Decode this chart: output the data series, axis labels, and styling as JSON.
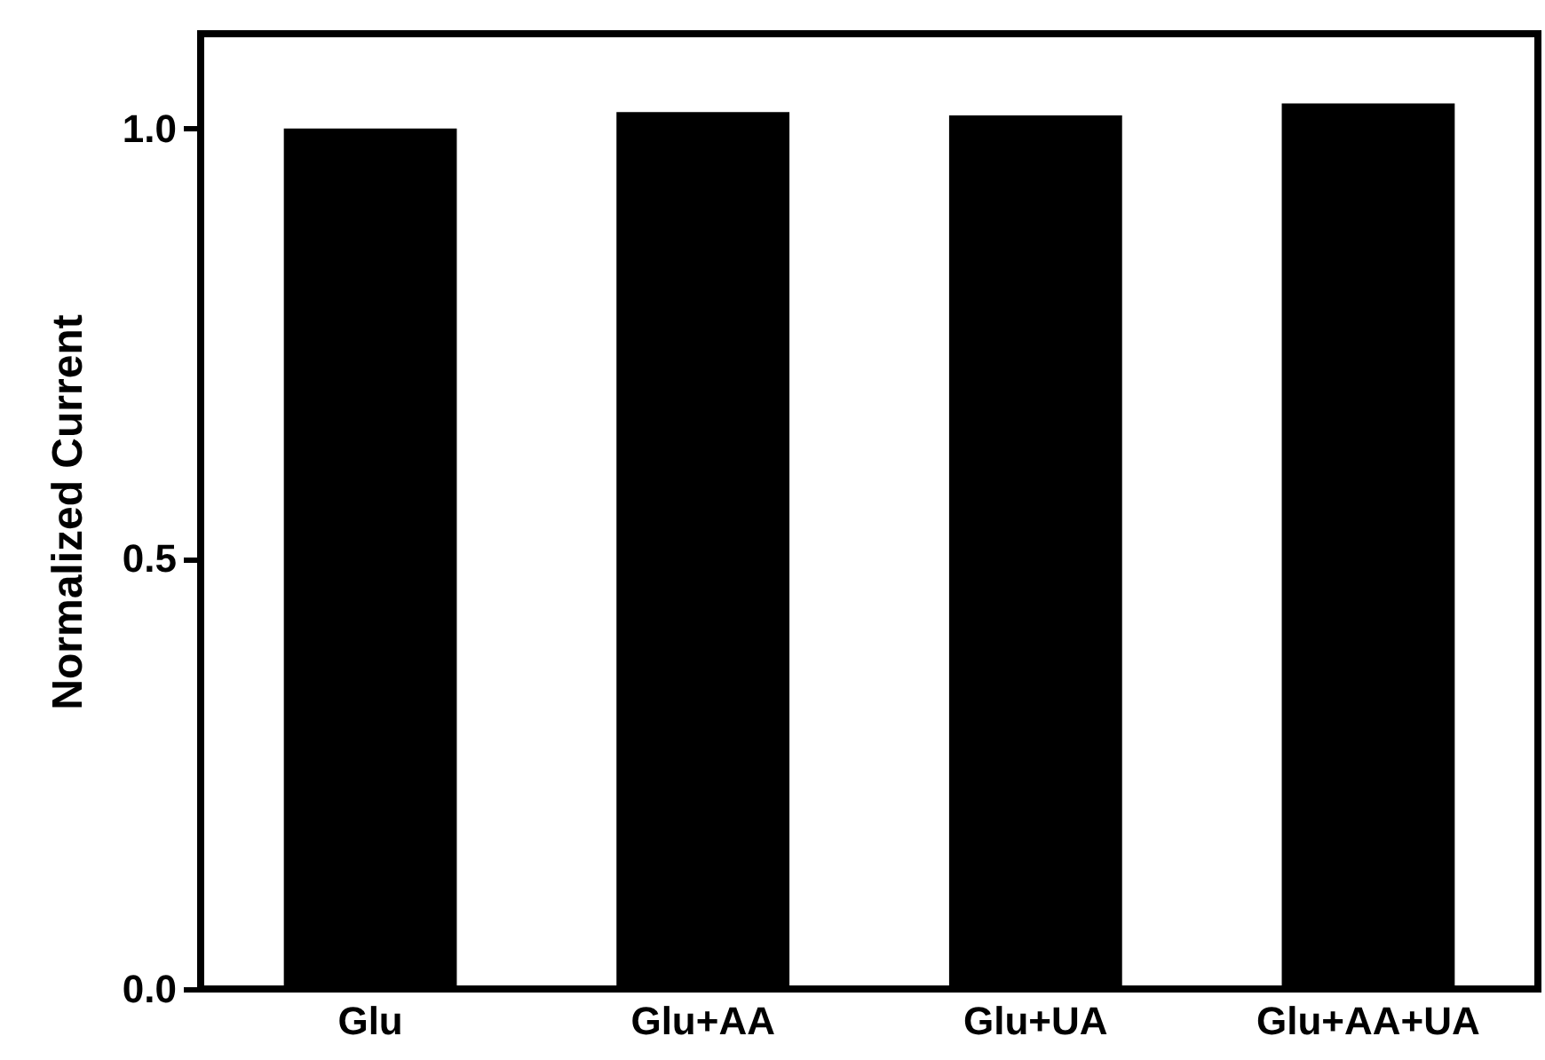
{
  "chart_data": {
    "type": "bar",
    "ylabel": "Normalized Current",
    "categories": [
      "Glu",
      "Glu+AA",
      "Glu+UA",
      "Glu+AA+UA"
    ],
    "values": [
      1.0,
      1.019,
      1.015,
      1.029
    ],
    "color": "#000000",
    "ylim": [
      0,
      1.11
    ],
    "yticks": [
      {
        "value": 0,
        "label": "0.0"
      },
      0.5,
      {
        "value": 1,
        "label": "1.0"
      }
    ],
    "grid": false
  }
}
